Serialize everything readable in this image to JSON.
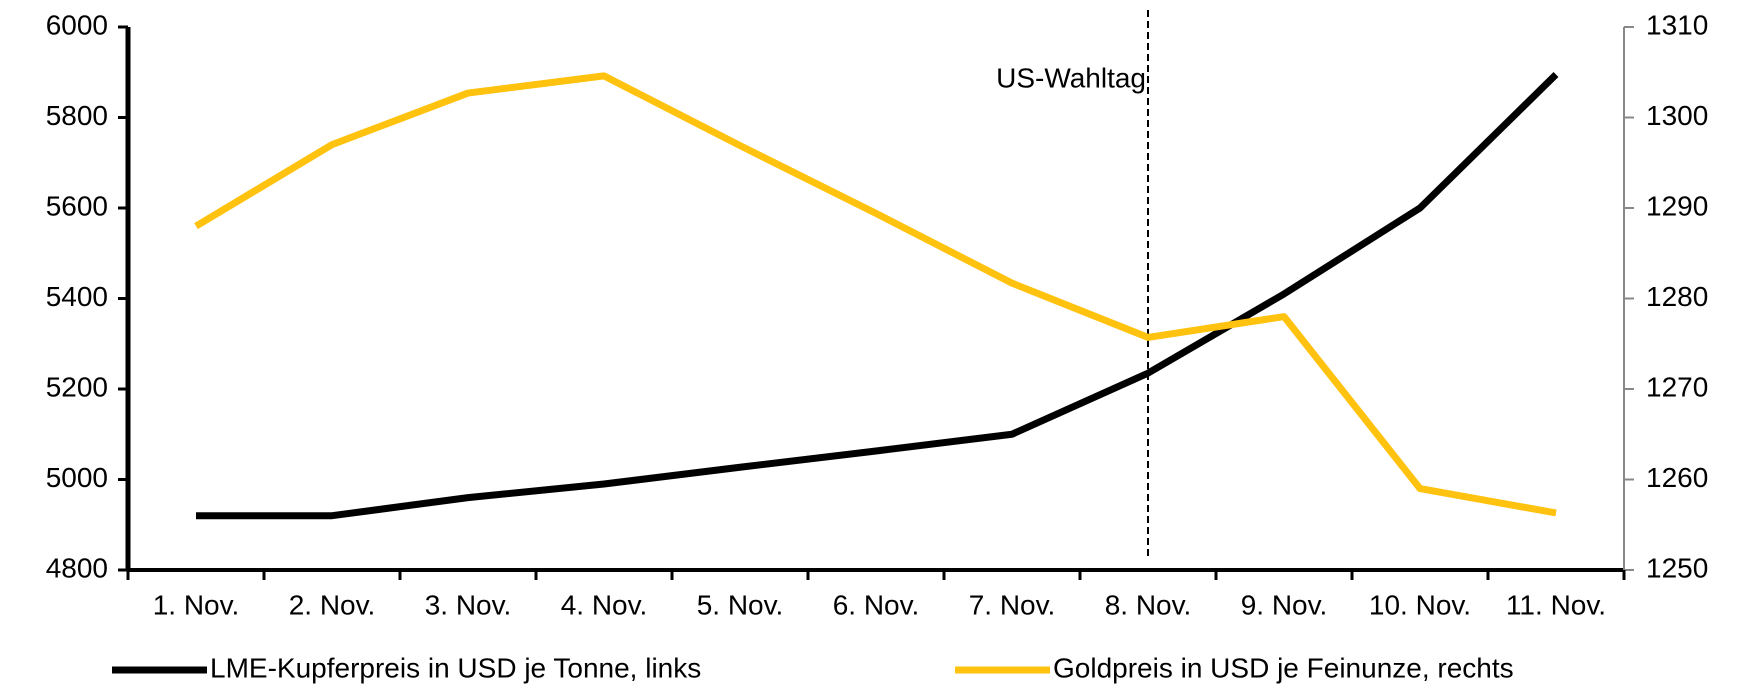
{
  "chart_data": {
    "type": "line",
    "categories": [
      "1. Nov.",
      "2. Nov.",
      "3. Nov.",
      "4. Nov.",
      "5. Nov.",
      "6. Nov.",
      "7. Nov.",
      "8. Nov.",
      "9. Nov.",
      "10. Nov.",
      "11. Nov."
    ],
    "series": [
      {
        "name": "LME-Kupferpreis in USD je Tonne, links",
        "color": "#000000",
        "values": [
          4920,
          4920,
          4960,
          4990,
          5027,
          5063,
          5100,
          5235,
          5410,
          5600,
          5895
        ]
      },
      {
        "name": "Goldpreis in USD je Feinunze, rechts",
        "color": "#ffc20e",
        "axis": "y2",
        "values": [
          1288,
          1297,
          1302.7,
          1304.6,
          1296.9,
          1289.4,
          1281.7,
          1275.7,
          1278,
          1259,
          1256.3
        ]
      }
    ],
    "ylim": [
      4800,
      6000
    ],
    "yticks": [
      4800,
      5000,
      5200,
      5400,
      5600,
      5800,
      6000
    ],
    "y2lim": [
      1250,
      1310
    ],
    "y2ticks": [
      1250,
      1260,
      1270,
      1280,
      1290,
      1300,
      1310
    ],
    "annotations": [
      {
        "text": "US-Wahltag",
        "x": "8. Nov."
      }
    ],
    "legend": "bottom"
  }
}
